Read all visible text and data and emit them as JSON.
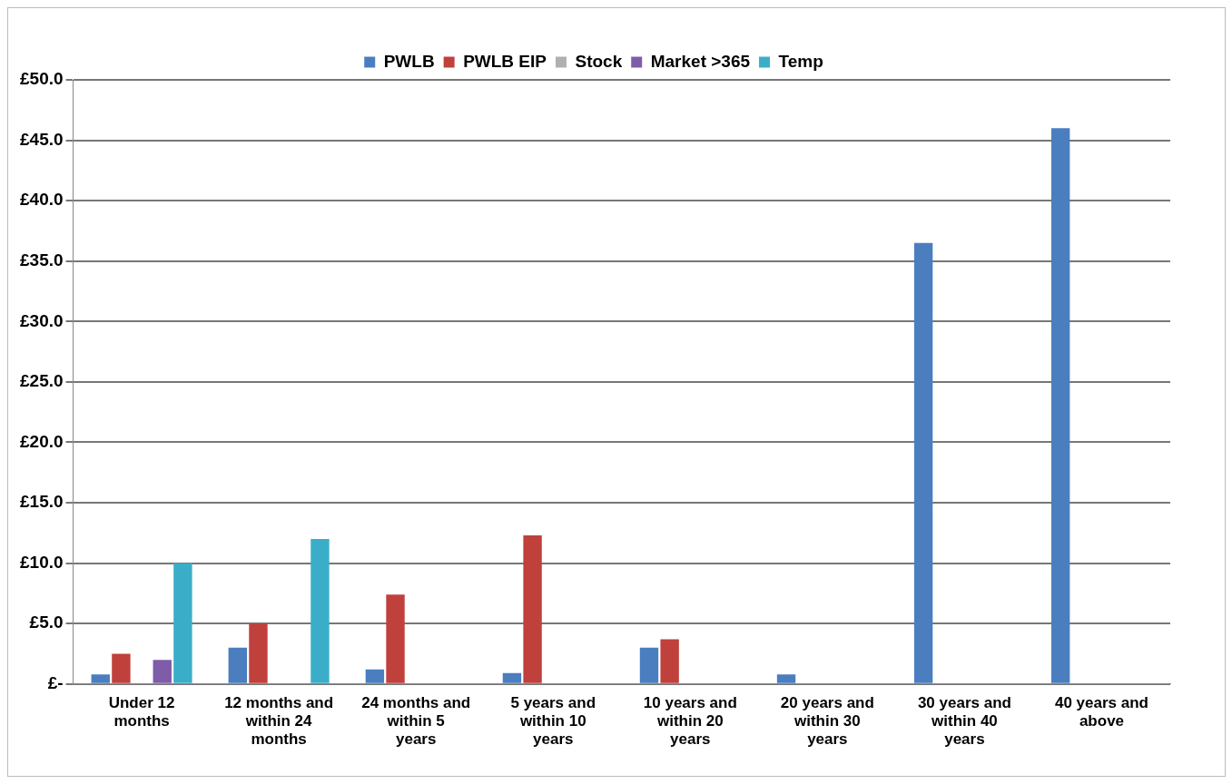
{
  "chart_data": {
    "type": "bar",
    "categories": [
      "Under 12 months",
      "12 months and within 24 months",
      "24 months and within 5 years",
      "5 years and within 10 years",
      "10 years and within 20 years",
      "20 years and within 30 years",
      "30 years and within 40 years",
      "40 years and above"
    ],
    "series": [
      {
        "name": "PWLB",
        "color": "#4a7ebf",
        "values": [
          0.8,
          3.0,
          1.2,
          0.9,
          3.0,
          0.8,
          36.5,
          46.0
        ]
      },
      {
        "name": "PWLB EIP",
        "color": "#c0403c",
        "values": [
          2.5,
          5.0,
          7.4,
          12.3,
          3.7,
          0,
          0,
          0
        ]
      },
      {
        "name": "Stock",
        "color": "#b0b0b0",
        "values": [
          0,
          0,
          0,
          0,
          0,
          0,
          0,
          0
        ]
      },
      {
        "name": "Market >365",
        "color": "#7e5ca8",
        "values": [
          2.0,
          0,
          0,
          0,
          0,
          0,
          0,
          0
        ]
      },
      {
        "name": "Temp",
        "color": "#3aaec8",
        "values": [
          10.0,
          12.0,
          0,
          0,
          0,
          0,
          0,
          0
        ]
      }
    ],
    "ylim": [
      0,
      50
    ],
    "yticks": [
      {
        "value": 0,
        "label": "£-"
      },
      {
        "value": 5,
        "label": "£5.0"
      },
      {
        "value": 10,
        "label": "£10.0"
      },
      {
        "value": 15,
        "label": "£15.0"
      },
      {
        "value": 20,
        "label": "£20.0"
      },
      {
        "value": 25,
        "label": "£25.0"
      },
      {
        "value": 30,
        "label": "£30.0"
      },
      {
        "value": 35,
        "label": "£35.0"
      },
      {
        "value": 40,
        "label": "£40.0"
      },
      {
        "value": 45,
        "label": "£45.0"
      },
      {
        "value": 50,
        "label": "£50.0"
      }
    ],
    "grid": "y",
    "legend": "top"
  }
}
